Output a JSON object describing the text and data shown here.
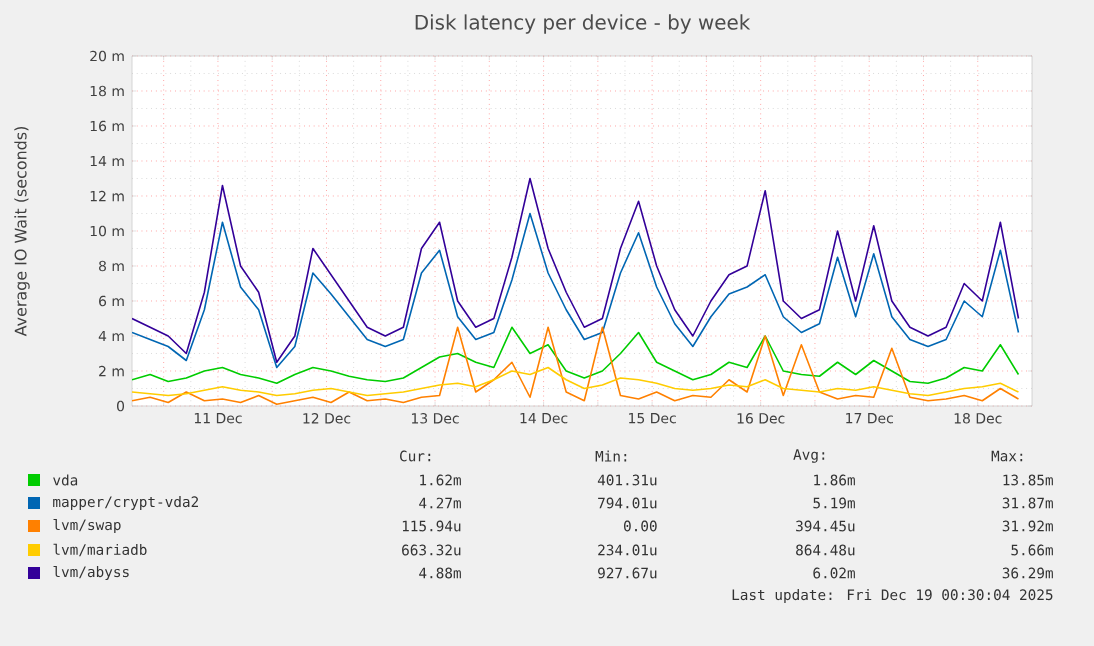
{
  "chart_data": {
    "type": "line",
    "title": "Disk latency per device - by week",
    "ylabel": "Average IO Wait (seconds)",
    "x": [
      "2025-12-10T17:00",
      "2025-12-10T21:00",
      "2025-12-11T01:00",
      "2025-12-11T05:00",
      "2025-12-11T09:00",
      "2025-12-11T13:00",
      "2025-12-11T17:00",
      "2025-12-11T21:00",
      "2025-12-12T01:00",
      "2025-12-12T05:00",
      "2025-12-12T09:00",
      "2025-12-12T13:00",
      "2025-12-12T17:00",
      "2025-12-12T21:00",
      "2025-12-13T01:00",
      "2025-12-13T05:00",
      "2025-12-13T09:00",
      "2025-12-13T13:00",
      "2025-12-13T17:00",
      "2025-12-13T21:00",
      "2025-12-14T01:00",
      "2025-12-14T05:00",
      "2025-12-14T09:00",
      "2025-12-14T13:00",
      "2025-12-14T17:00",
      "2025-12-14T21:00",
      "2025-12-15T01:00",
      "2025-12-15T05:00",
      "2025-12-15T09:00",
      "2025-12-15T13:00",
      "2025-12-15T17:00",
      "2025-12-15T21:00",
      "2025-12-16T01:00",
      "2025-12-16T05:00",
      "2025-12-16T09:00",
      "2025-12-16T13:00",
      "2025-12-16T17:00",
      "2025-12-16T21:00",
      "2025-12-17T01:00",
      "2025-12-17T05:00",
      "2025-12-17T09:00",
      "2025-12-17T13:00",
      "2025-12-17T17:00",
      "2025-12-17T21:00",
      "2025-12-18T01:00",
      "2025-12-18T05:00",
      "2025-12-18T09:00",
      "2025-12-18T13:00",
      "2025-12-18T17:00",
      "2025-12-18T21:00"
    ],
    "series": [
      {
        "name": "vda",
        "color": "#00cc00",
        "values": [
          1.5,
          1.8,
          1.4,
          1.6,
          2.0,
          2.2,
          1.8,
          1.6,
          1.3,
          1.8,
          2.2,
          2.0,
          1.7,
          1.5,
          1.4,
          1.6,
          2.2,
          2.8,
          3.0,
          2.5,
          2.2,
          4.5,
          3.0,
          3.5,
          2.0,
          1.6,
          2.0,
          3.0,
          4.2,
          2.5,
          2.0,
          1.5,
          1.8,
          2.5,
          2.2,
          4.0,
          2.0,
          1.8,
          1.7,
          2.5,
          1.8,
          2.6,
          2.0,
          1.4,
          1.3,
          1.6,
          2.2,
          2.0,
          3.5,
          1.8
        ]
      },
      {
        "name": "mapper/crypt-vda2",
        "color": "#0066b3",
        "values": [
          4.2,
          3.8,
          3.4,
          2.6,
          5.5,
          10.5,
          6.8,
          5.5,
          2.2,
          3.4,
          7.6,
          6.4,
          5.1,
          3.8,
          3.4,
          3.8,
          7.6,
          8.9,
          5.1,
          3.8,
          4.2,
          7.2,
          11.0,
          7.6,
          5.5,
          3.8,
          4.2,
          7.6,
          9.9,
          6.8,
          4.7,
          3.4,
          5.1,
          6.4,
          6.8,
          7.5,
          5.1,
          4.2,
          4.7,
          8.5,
          5.1,
          8.7,
          5.1,
          3.8,
          3.4,
          3.8,
          6.0,
          5.1,
          8.9,
          4.2
        ]
      },
      {
        "name": "lvm/swap",
        "color": "#ff8000",
        "values": [
          0.3,
          0.5,
          0.2,
          0.8,
          0.3,
          0.4,
          0.2,
          0.6,
          0.1,
          0.3,
          0.5,
          0.2,
          0.8,
          0.3,
          0.4,
          0.2,
          0.5,
          0.6,
          4.5,
          0.8,
          1.5,
          2.5,
          0.5,
          4.5,
          0.8,
          0.3,
          4.5,
          0.6,
          0.4,
          0.8,
          0.3,
          0.6,
          0.5,
          1.5,
          0.8,
          4.0,
          0.6,
          3.5,
          0.8,
          0.4,
          0.6,
          0.5,
          3.3,
          0.5,
          0.3,
          0.4,
          0.6,
          0.3,
          1.0,
          0.4
        ]
      },
      {
        "name": "lvm/mariadb",
        "color": "#ffcc00",
        "values": [
          0.8,
          0.7,
          0.6,
          0.7,
          0.9,
          1.1,
          0.9,
          0.8,
          0.6,
          0.7,
          0.9,
          1.0,
          0.8,
          0.6,
          0.7,
          0.8,
          1.0,
          1.2,
          1.3,
          1.1,
          1.5,
          2.0,
          1.8,
          2.2,
          1.5,
          1.0,
          1.2,
          1.6,
          1.5,
          1.3,
          1.0,
          0.9,
          1.0,
          1.2,
          1.1,
          1.5,
          1.0,
          0.9,
          0.8,
          1.0,
          0.9,
          1.1,
          0.9,
          0.7,
          0.6,
          0.8,
          1.0,
          1.1,
          1.3,
          0.8
        ]
      },
      {
        "name": "lvm/abyss",
        "color": "#330099",
        "values": [
          5.0,
          4.5,
          4.0,
          3.0,
          6.5,
          12.6,
          8.0,
          6.5,
          2.5,
          4.0,
          9.0,
          7.5,
          6.0,
          4.5,
          4.0,
          4.5,
          9.0,
          10.5,
          6.0,
          4.5,
          5.0,
          8.5,
          13.0,
          9.0,
          6.5,
          4.5,
          5.0,
          9.0,
          11.7,
          8.0,
          5.5,
          4.0,
          6.0,
          7.5,
          8.0,
          12.3,
          6.0,
          5.0,
          5.5,
          10.0,
          6.0,
          10.3,
          6.0,
          4.5,
          4.0,
          4.5,
          7.0,
          6.0,
          10.5,
          5.0
        ]
      }
    ],
    "xlim": [
      "2025-12-10T17:00",
      "2025-12-19T00:00"
    ],
    "xticks": [
      {
        "value": "2025-12-11T00:00",
        "label": null
      },
      {
        "value": "2025-12-11T12:00",
        "label": "11 Dec"
      },
      {
        "value": "2025-12-12T00:00",
        "label": null
      },
      {
        "value": "2025-12-12T12:00",
        "label": "12 Dec"
      },
      {
        "value": "2025-12-13T00:00",
        "label": null
      },
      {
        "value": "2025-12-13T12:00",
        "label": "13 Dec"
      },
      {
        "value": "2025-12-14T00:00",
        "label": null
      },
      {
        "value": "2025-12-14T12:00",
        "label": "14 Dec"
      },
      {
        "value": "2025-12-15T00:00",
        "label": null
      },
      {
        "value": "2025-12-15T12:00",
        "label": "15 Dec"
      },
      {
        "value": "2025-12-16T00:00",
        "label": null
      },
      {
        "value": "2025-12-16T12:00",
        "label": "16 Dec"
      },
      {
        "value": "2025-12-17T00:00",
        "label": null
      },
      {
        "value": "2025-12-17T12:00",
        "label": "17 Dec"
      },
      {
        "value": "2025-12-18T00:00",
        "label": null
      },
      {
        "value": "2025-12-18T12:00",
        "label": "18 Dec"
      }
    ],
    "ylim": [
      0,
      20
    ],
    "yticks": [
      0,
      {
        "value": 2,
        "label": "2 m"
      },
      {
        "value": 4,
        "label": "4 m"
      },
      {
        "value": 6,
        "label": "6 m"
      },
      {
        "value": 8,
        "label": "8 m"
      },
      {
        "value": 10,
        "label": "10 m"
      },
      {
        "value": 12,
        "label": "12 m"
      },
      {
        "value": 14,
        "label": "14 m"
      },
      {
        "value": 16,
        "label": "16 m"
      },
      {
        "value": 18,
        "label": "18 m"
      },
      {
        "value": 20,
        "label": "20 m"
      }
    ],
    "grid": true,
    "legend": "bottom",
    "line_style": "solid",
    "annotations": [
      "Cur:",
      "Min:",
      "Avg:",
      "Max:",
      "1.62m",
      "401.31u",
      "1.86m",
      "13.85m",
      "4.27m",
      "794.01u",
      "5.19m",
      "31.87m",
      "115.94u",
      "0.00",
      "394.45u",
      "31.92m",
      "663.32u",
      "234.01u",
      "864.48u",
      "5.66m",
      "4.88m",
      "927.67u",
      "6.02m",
      "36.29m",
      "Last update: Fri Dec 19 00:30:04 2025"
    ]
  }
}
